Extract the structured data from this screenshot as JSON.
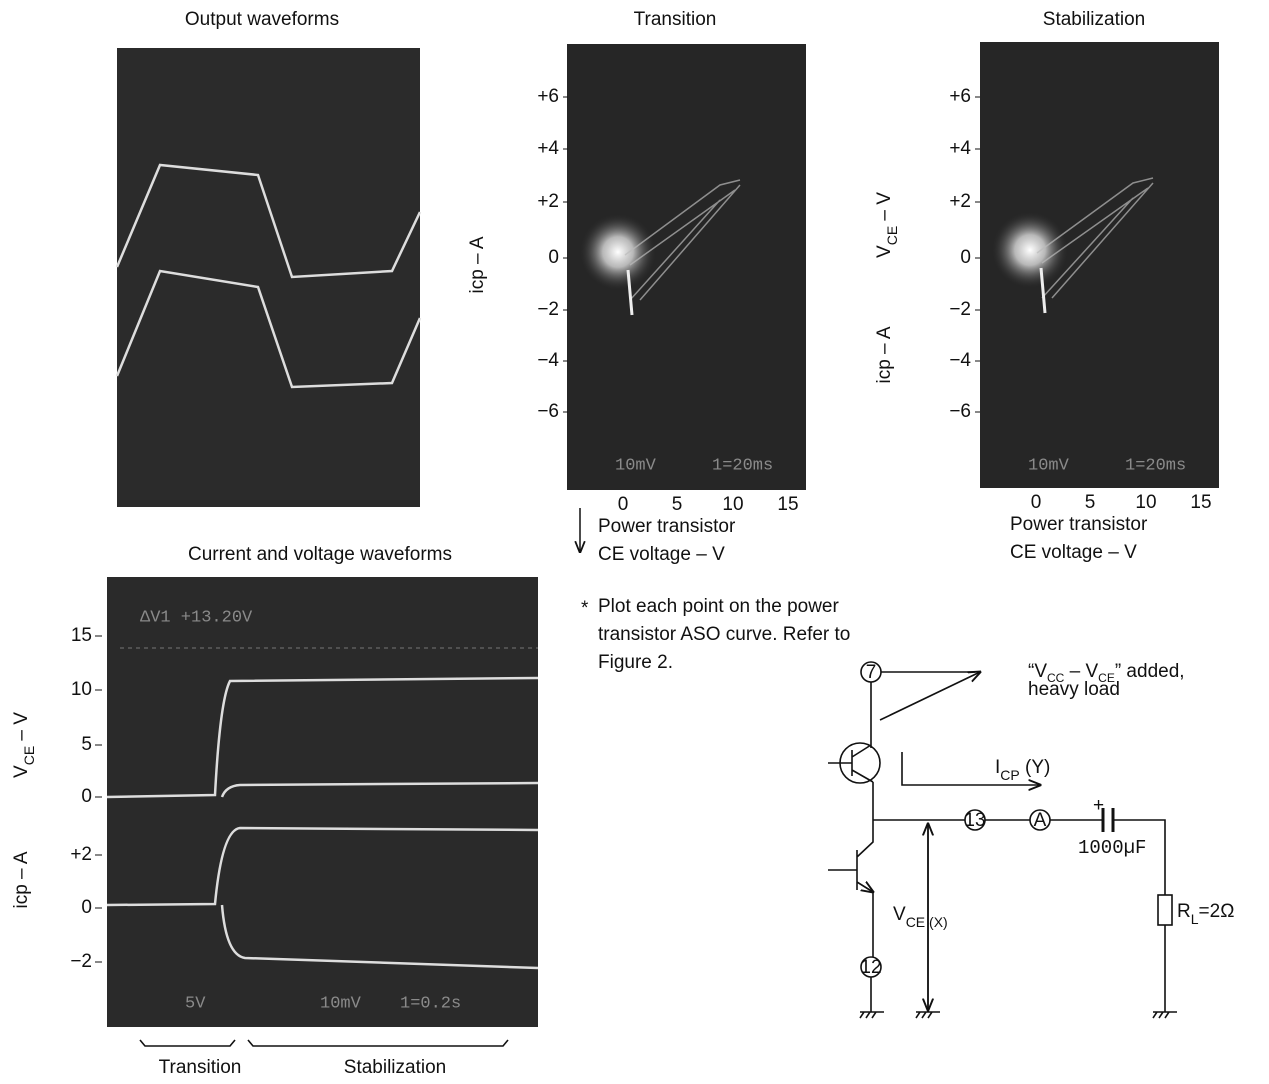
{
  "output_waveforms": {
    "title": "Output waveforms"
  },
  "transition": {
    "title": "Transition",
    "y_label": "icp – A",
    "yticks": [
      "+6",
      "+4",
      "+2",
      "0",
      "−2",
      "−4",
      "−6"
    ],
    "xticks": [
      "0",
      "5",
      "10",
      "15"
    ],
    "x_label": [
      "Power transistor",
      "CE voltage – V"
    ],
    "scope_text": [
      "10mV",
      "1=20ms"
    ]
  },
  "stabilization": {
    "title": "Stabilization",
    "y_label_vce": {
      "main": "V",
      "sub": "CE",
      "rest": " – V"
    },
    "y_label_icp": "icp – A",
    "yticks": [
      "+6",
      "+4",
      "+2",
      "0",
      "−2",
      "−4",
      "−6"
    ],
    "xticks": [
      "0",
      "5",
      "10",
      "15"
    ],
    "x_label": [
      "Power transistor",
      "CE voltage – V"
    ],
    "scope_text": [
      "10mV",
      "1=20ms"
    ]
  },
  "current_voltage": {
    "title": "Current and voltage waveforms",
    "vce_ticks": [
      "15",
      "10",
      "5",
      "0"
    ],
    "icp_ticks": [
      "+2",
      "0",
      "−2"
    ],
    "y_label_vce": {
      "main": "V",
      "sub": "CE",
      "rest": " – V"
    },
    "y_label_icp": "icp – A",
    "scope_text": [
      "ΔV1 +13.20V",
      "5V",
      "10mV",
      "1=0.2s"
    ],
    "phases": [
      "Transition",
      "Stabilization"
    ]
  },
  "note": {
    "mark": "*",
    "lines": [
      "Plot each point on the power",
      "transistor ASO curve. Refer to",
      "Figure 2."
    ]
  },
  "circuit": {
    "pins": [
      "7",
      "13",
      "12"
    ],
    "ammeter": "A",
    "capacitor": "1000µF",
    "capacitor_polarity": "+",
    "load": {
      "main": "R",
      "sub": "L",
      "rest": "=2Ω"
    },
    "vce": {
      "main": "V",
      "sub": "CE (X)"
    },
    "icp": {
      "main": "I",
      "sub": "CP",
      "rest": " (Y)"
    },
    "annotation": {
      "parts": [
        "“V",
        "CC",
        " – V",
        "CE",
        "” added,"
      ],
      "line2": "heavy load"
    }
  }
}
